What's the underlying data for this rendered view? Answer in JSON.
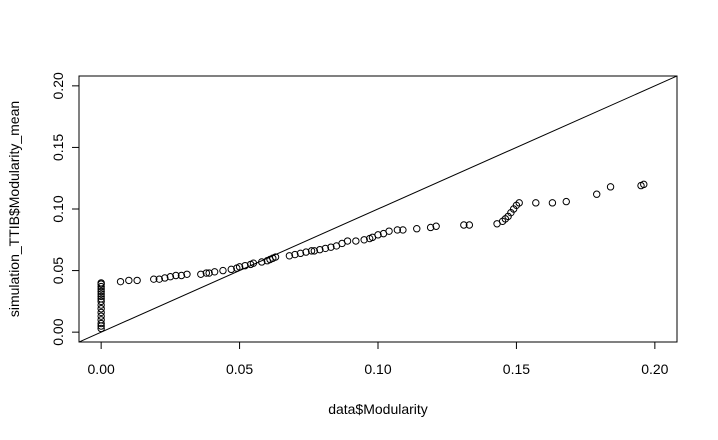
{
  "chart_data": {
    "type": "scatter",
    "title": "",
    "xlabel": "data$Modularity",
    "ylabel": "simulation_TTIB$Modularity_mean",
    "xlim": [
      -0.008,
      0.208
    ],
    "ylim": [
      -0.008,
      0.208
    ],
    "x_ticks": [
      0.0,
      0.05,
      0.1,
      0.15,
      0.2
    ],
    "x_tick_labels": [
      "0.00",
      "0.05",
      "0.10",
      "0.15",
      "0.20"
    ],
    "y_ticks": [
      0.0,
      0.05,
      0.1,
      0.15,
      0.2
    ],
    "y_tick_labels": [
      "0.00",
      "0.05",
      "0.10",
      "0.15",
      "0.20"
    ],
    "grid": false,
    "legend": "none",
    "reference_line": {
      "intercept": 0,
      "slope": 1
    },
    "marker": "open-circle",
    "points": [
      [
        0.0,
        0.003
      ],
      [
        0.0,
        0.005
      ],
      [
        0.0,
        0.007
      ],
      [
        0.0,
        0.01
      ],
      [
        0.0,
        0.013
      ],
      [
        0.0,
        0.016
      ],
      [
        0.0,
        0.019
      ],
      [
        0.0,
        0.022
      ],
      [
        0.0,
        0.025
      ],
      [
        0.0,
        0.027
      ],
      [
        0.0,
        0.029
      ],
      [
        0.0,
        0.031
      ],
      [
        0.0,
        0.033
      ],
      [
        0.0,
        0.035
      ],
      [
        0.0,
        0.037
      ],
      [
        0.0,
        0.039
      ],
      [
        0.0,
        0.04
      ],
      [
        0.007,
        0.041
      ],
      [
        0.01,
        0.042
      ],
      [
        0.013,
        0.042
      ],
      [
        0.019,
        0.043
      ],
      [
        0.021,
        0.043
      ],
      [
        0.023,
        0.044
      ],
      [
        0.025,
        0.045
      ],
      [
        0.027,
        0.046
      ],
      [
        0.029,
        0.046
      ],
      [
        0.031,
        0.047
      ],
      [
        0.036,
        0.047
      ],
      [
        0.038,
        0.048
      ],
      [
        0.039,
        0.048
      ],
      [
        0.041,
        0.049
      ],
      [
        0.044,
        0.05
      ],
      [
        0.047,
        0.051
      ],
      [
        0.049,
        0.052
      ],
      [
        0.05,
        0.053
      ],
      [
        0.052,
        0.054
      ],
      [
        0.054,
        0.055
      ],
      [
        0.055,
        0.056
      ],
      [
        0.058,
        0.057
      ],
      [
        0.06,
        0.058
      ],
      [
        0.061,
        0.059
      ],
      [
        0.062,
        0.06
      ],
      [
        0.063,
        0.061
      ],
      [
        0.068,
        0.062
      ],
      [
        0.07,
        0.063
      ],
      [
        0.072,
        0.064
      ],
      [
        0.074,
        0.065
      ],
      [
        0.076,
        0.066
      ],
      [
        0.077,
        0.066
      ],
      [
        0.079,
        0.067
      ],
      [
        0.081,
        0.068
      ],
      [
        0.083,
        0.069
      ],
      [
        0.085,
        0.07
      ],
      [
        0.087,
        0.072
      ],
      [
        0.089,
        0.074
      ],
      [
        0.092,
        0.074
      ],
      [
        0.095,
        0.075
      ],
      [
        0.097,
        0.076
      ],
      [
        0.098,
        0.077
      ],
      [
        0.1,
        0.079
      ],
      [
        0.102,
        0.08
      ],
      [
        0.104,
        0.082
      ],
      [
        0.107,
        0.083
      ],
      [
        0.109,
        0.083
      ],
      [
        0.114,
        0.084
      ],
      [
        0.119,
        0.085
      ],
      [
        0.121,
        0.086
      ],
      [
        0.131,
        0.087
      ],
      [
        0.133,
        0.087
      ],
      [
        0.143,
        0.088
      ],
      [
        0.145,
        0.09
      ],
      [
        0.146,
        0.092
      ],
      [
        0.147,
        0.094
      ],
      [
        0.148,
        0.097
      ],
      [
        0.149,
        0.1
      ],
      [
        0.15,
        0.103
      ],
      [
        0.151,
        0.105
      ],
      [
        0.157,
        0.105
      ],
      [
        0.163,
        0.105
      ],
      [
        0.168,
        0.106
      ],
      [
        0.179,
        0.112
      ],
      [
        0.184,
        0.118
      ],
      [
        0.195,
        0.119
      ],
      [
        0.196,
        0.12
      ]
    ]
  }
}
